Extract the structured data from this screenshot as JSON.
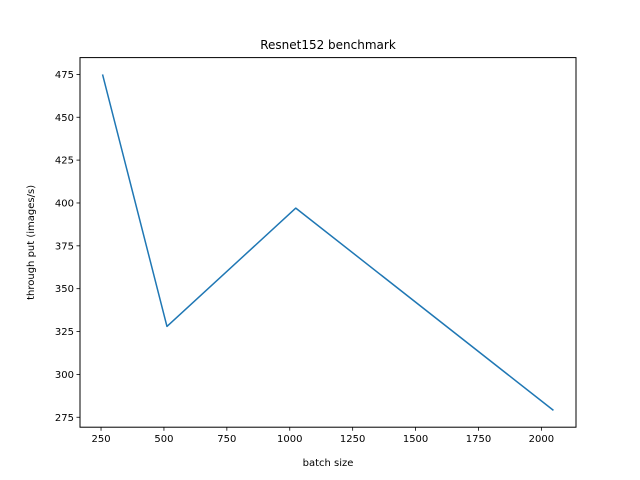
{
  "chart_data": {
    "type": "line",
    "title": "Resnet152 benchmark",
    "xlabel": "batch size",
    "ylabel": "through put (images/s)",
    "x": [
      256,
      512,
      1024,
      2048
    ],
    "series": [
      {
        "values": [
          475,
          328,
          397,
          279
        ],
        "color": "#1f77b4"
      }
    ],
    "xlim": [
      166.4,
      2137.6
    ],
    "ylim": [
      269.2,
      484.8
    ],
    "xticks": [
      250,
      500,
      750,
      1000,
      1250,
      1500,
      1750,
      2000
    ],
    "yticks": [
      275,
      300,
      325,
      350,
      375,
      400,
      425,
      450,
      475
    ],
    "grid": false,
    "legend": false
  }
}
